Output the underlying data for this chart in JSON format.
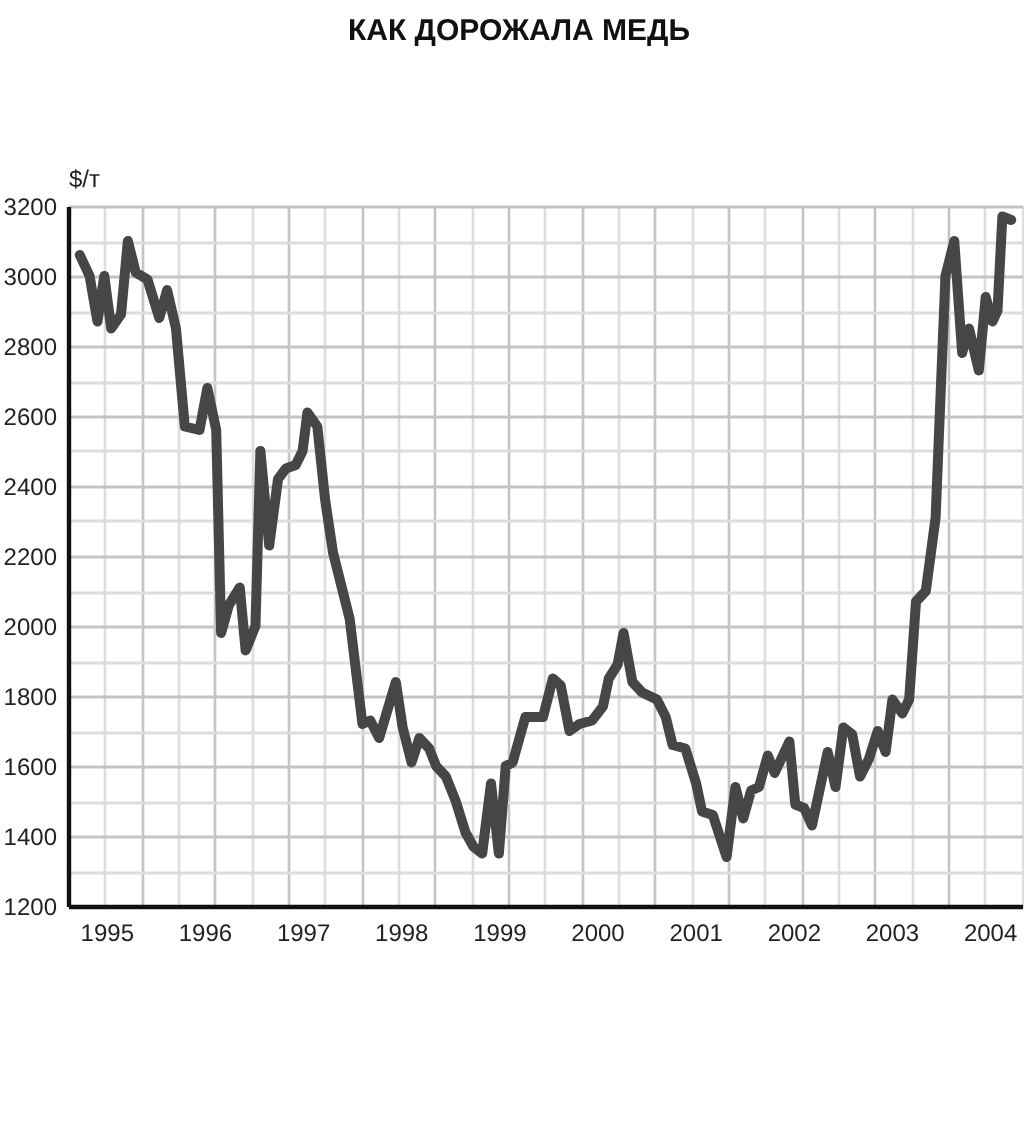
{
  "chart_data": {
    "type": "line",
    "title": "КАК ДОРОЖАЛА МЕДЬ",
    "ylabel": "$/т",
    "x": [
      1995.23,
      1995.33,
      1995.41,
      1995.48,
      1995.55,
      1995.65,
      1995.72,
      1995.8,
      1995.92,
      1996.04,
      1996.12,
      1996.21,
      1996.3,
      1996.45,
      1996.53,
      1996.62,
      1996.67,
      1996.75,
      1996.86,
      1996.92,
      1997.02,
      1997.07,
      1997.16,
      1997.25,
      1997.33,
      1997.43,
      1997.5,
      1997.55,
      1997.65,
      1997.73,
      1997.81,
      1997.98,
      1998.11,
      1998.19,
      1998.28,
      1998.45,
      1998.52,
      1998.61,
      1998.69,
      1998.79,
      1998.86,
      1998.96,
      1999.06,
      1999.16,
      1999.24,
      1999.33,
      1999.42,
      1999.5,
      1999.57,
      1999.64,
      1999.77,
      1999.95,
      2000.05,
      2000.13,
      2000.22,
      2000.32,
      2000.45,
      2000.56,
      2000.62,
      2000.71,
      2000.77,
      2000.86,
      2000.96,
      2001.11,
      2001.2,
      2001.27,
      2001.4,
      2001.51,
      2001.57,
      2001.68,
      2001.82,
      2001.91,
      2001.99,
      2002.07,
      2002.15,
      2002.24,
      2002.31,
      2002.46,
      2002.52,
      2002.61,
      2002.69,
      2002.85,
      2002.93,
      2003.01,
      2003.1,
      2003.18,
      2003.27,
      2003.36,
      2003.44,
      2003.51,
      2003.61,
      2003.68,
      2003.75,
      2003.85,
      2003.95,
      2003.98,
      2004.05,
      2004.14,
      2004.22,
      2004.29,
      2004.34,
      2004.39,
      2004.46,
      2004.53,
      2004.58,
      2004.63,
      2004.72
    ],
    "series": [
      {
        "color": "#464646",
        "values": [
          3060,
          3000,
          2870,
          3000,
          2850,
          2890,
          3100,
          3010,
          2990,
          2880,
          2960,
          2850,
          2570,
          2560,
          2680,
          2560,
          1980,
          2060,
          2110,
          1930,
          2000,
          2500,
          2230,
          2420,
          2450,
          2460,
          2500,
          2610,
          2570,
          2360,
          2210,
          2020,
          1720,
          1730,
          1680,
          1840,
          1710,
          1610,
          1680,
          1650,
          1600,
          1570,
          1500,
          1410,
          1370,
          1350,
          1550,
          1350,
          1600,
          1610,
          1740,
          1740,
          1850,
          1830,
          1700,
          1720,
          1730,
          1770,
          1850,
          1890,
          1980,
          1840,
          1810,
          1790,
          1740,
          1660,
          1650,
          1550,
          1470,
          1460,
          1340,
          1540,
          1450,
          1530,
          1540,
          1630,
          1580,
          1670,
          1490,
          1480,
          1430,
          1640,
          1540,
          1710,
          1690,
          1570,
          1620,
          1700,
          1640,
          1790,
          1750,
          1790,
          2070,
          2100,
          2310,
          2520,
          3000,
          3100,
          2780,
          2850,
          2790,
          2730,
          2940,
          2870,
          2900,
          3170,
          3160
        ]
      }
    ],
    "xlim": [
      1995.11,
      2004.83
    ],
    "xticks": [
      {
        "value": 1995.48,
        "label": null
      },
      {
        "value": 1995.5,
        "label": "1995"
      },
      {
        "value": 1995.86,
        "label": null
      },
      {
        "value": 1996.23,
        "label": null
      },
      {
        "value": 1996.5,
        "label": "1996"
      },
      {
        "value": 1996.6,
        "label": null
      },
      {
        "value": 1996.98,
        "label": null
      },
      {
        "value": 1997.35,
        "label": null
      },
      {
        "value": 1997.5,
        "label": "1997"
      },
      {
        "value": 1997.72,
        "label": null
      },
      {
        "value": 1998.1,
        "label": null
      },
      {
        "value": 1998.47,
        "label": null
      },
      {
        "value": 1998.5,
        "label": "1998"
      },
      {
        "value": 1998.84,
        "label": null
      },
      {
        "value": 1999.22,
        "label": null
      },
      {
        "value": 1999.5,
        "label": "1999"
      },
      {
        "value": 1999.59,
        "label": null
      },
      {
        "value": 1999.96,
        "label": null
      },
      {
        "value": 2000.34,
        "label": null
      },
      {
        "value": 2000.5,
        "label": "2000"
      },
      {
        "value": 2000.71,
        "label": null
      },
      {
        "value": 2001.08,
        "label": null
      },
      {
        "value": 2001.46,
        "label": null
      },
      {
        "value": 2001.5,
        "label": "2001"
      },
      {
        "value": 2001.83,
        "label": null
      },
      {
        "value": 2002.2,
        "label": null
      },
      {
        "value": 2002.5,
        "label": "2002"
      },
      {
        "value": 2002.58,
        "label": null
      },
      {
        "value": 2002.95,
        "label": null
      },
      {
        "value": 2003.32,
        "label": null
      },
      {
        "value": 2003.5,
        "label": "2003"
      },
      {
        "value": 2003.7,
        "label": null
      },
      {
        "value": 2004.07,
        "label": null
      },
      {
        "value": 2004.44,
        "label": null
      },
      {
        "value": 2004.5,
        "label": "2004"
      }
    ],
    "ylim": [
      1200,
      3200
    ],
    "yticks": [
      1200,
      {
        "value": 1300,
        "label": null
      },
      1400,
      {
        "value": 1500,
        "label": null
      },
      1600,
      {
        "value": 1700,
        "label": null
      },
      1800,
      {
        "value": 1900,
        "label": null
      },
      2000,
      {
        "value": 2100,
        "label": null
      },
      2200,
      {
        "value": 2300,
        "label": null
      },
      2400,
      {
        "value": 2500,
        "label": null
      },
      2600,
      {
        "value": 2700,
        "label": null
      },
      2800,
      {
        "value": 2900,
        "label": null
      },
      3000,
      {
        "value": 3100,
        "label": null
      },
      3200
    ],
    "grid": true
  }
}
